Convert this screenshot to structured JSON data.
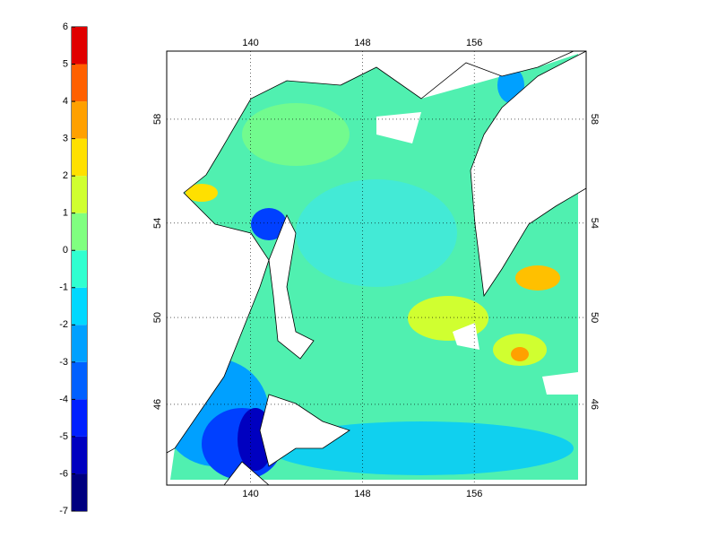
{
  "colorbar": {
    "ticks": [
      -7,
      -6,
      -5,
      -4,
      -3,
      -2,
      -1,
      0,
      1,
      2,
      3,
      4,
      5,
      6
    ],
    "colors": [
      "#00007f",
      "#0000c0",
      "#0020ff",
      "#0060ff",
      "#00a0ff",
      "#00d8ff",
      "#30ffd0",
      "#80ff80",
      "#d0ff30",
      "#ffe000",
      "#ffa000",
      "#ff6000",
      "#e00000"
    ]
  },
  "map": {
    "lon_range": [
      134,
      164
    ],
    "lat_range": [
      42,
      60.4
    ],
    "lon_ticks": [
      140,
      148,
      156
    ],
    "lat_ticks": [
      46,
      50,
      54,
      58
    ]
  }
}
